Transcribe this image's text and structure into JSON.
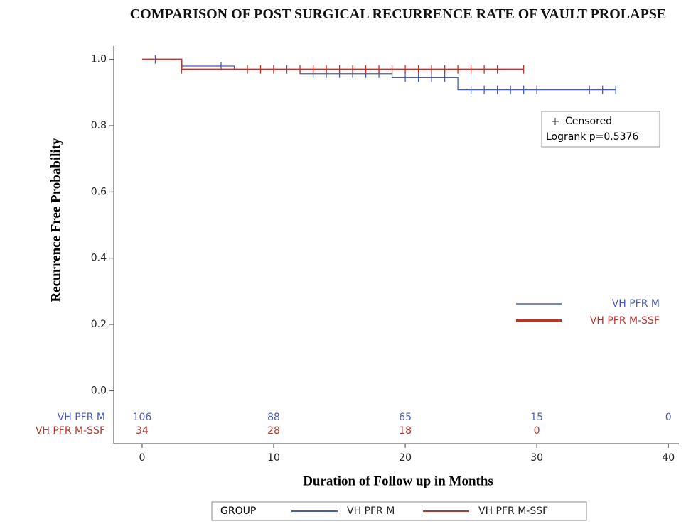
{
  "chart_data": {
    "type": "km",
    "title": "COMPARISON OF POST SURGICAL RECURRENCE RATE OF VAULT PROLAPSE",
    "x_label": "Duration of Follow up in Months",
    "y_label": "Recurrence Free Probability",
    "xlim": [
      -2.16,
      40.8
    ],
    "ylim": [
      -0.16,
      1.04
    ],
    "xticks": [
      0,
      10,
      20,
      30,
      40
    ],
    "yticks": [
      {
        "value": 0,
        "label": "0.0"
      },
      0.2,
      0.4,
      0.6,
      0.8,
      {
        "value": 1,
        "label": "1.0"
      }
    ],
    "series": [
      {
        "name": "VH PFR M",
        "color": "#4a5cb2",
        "x": [
          0,
          3,
          7,
          12,
          19,
          24,
          36
        ],
        "values": [
          1.0,
          0.98,
          0.97,
          0.957,
          0.945,
          0.908,
          0.908
        ],
        "censored": {
          "x": [
            1,
            6,
            10,
            11,
            13,
            14,
            15,
            16,
            17,
            18,
            20,
            21,
            22,
            23,
            25,
            26,
            27,
            28,
            29,
            30,
            34,
            35,
            36
          ],
          "values": [
            1.0,
            0.98,
            0.97,
            0.97,
            0.957,
            0.957,
            0.957,
            0.957,
            0.957,
            0.957,
            0.945,
            0.945,
            0.945,
            0.945,
            0.908,
            0.908,
            0.908,
            0.908,
            0.908,
            0.908,
            0.908,
            0.908,
            0.908
          ]
        },
        "at_risk": [
          106,
          88,
          65,
          15,
          0
        ]
      },
      {
        "name": "VH PFR M-SSF",
        "color": "#b8352c",
        "x": [
          0,
          3,
          29
        ],
        "values": [
          1.0,
          0.97,
          0.97
        ],
        "censored": {
          "x": [
            3,
            8,
            9,
            10,
            12,
            13,
            14,
            15,
            16,
            17,
            18,
            19,
            20,
            21,
            22,
            23,
            24,
            25,
            26,
            27,
            29
          ],
          "values": [
            0.97,
            0.97,
            0.97,
            0.97,
            0.97,
            0.97,
            0.97,
            0.97,
            0.97,
            0.97,
            0.97,
            0.97,
            0.97,
            0.97,
            0.97,
            0.97,
            0.97,
            0.97,
            0.97,
            0.97,
            0.97
          ]
        },
        "at_risk": [
          34,
          28,
          18,
          0,
          null
        ]
      }
    ],
    "censored_label": "Censored",
    "annotation": "Logrank p=0.5376",
    "legend_title": "GROUP"
  }
}
